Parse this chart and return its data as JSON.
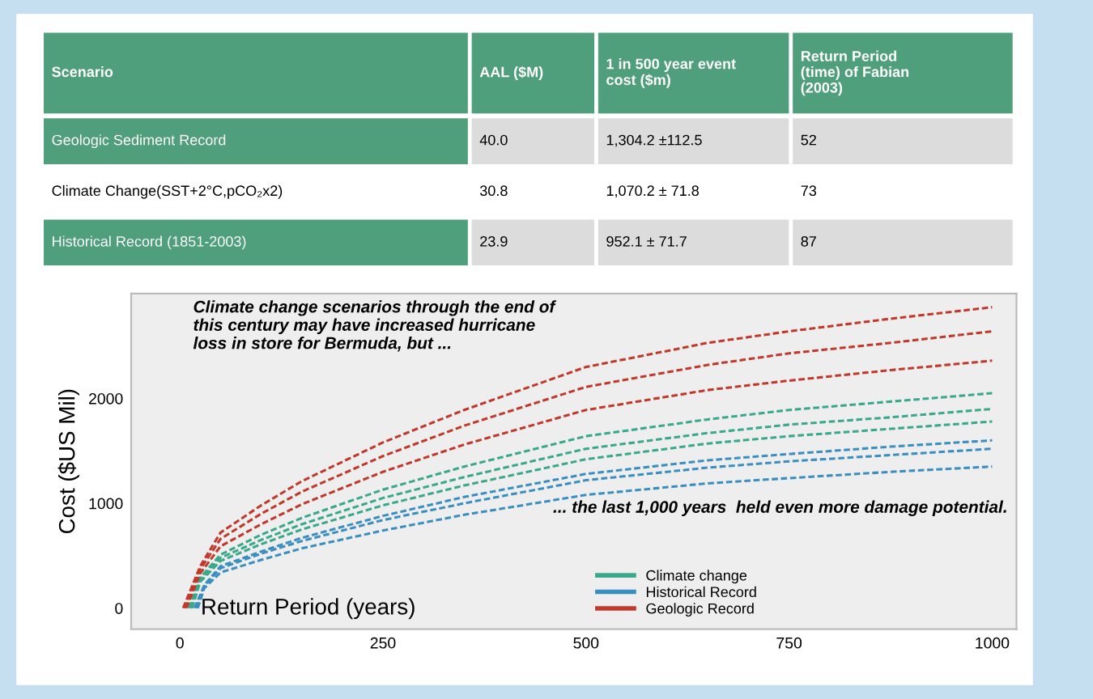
{
  "chart_data": [
    {
      "type": "other",
      "annotations": [
        "Scenario",
        "AAL ($M)",
        "1 in 500 year event\ncost ($m)",
        "Return Period\n(time) of Fabian\n(2003)",
        "Geologic Sediment Record",
        "40.0",
        "1,304.2 ±112.5",
        "52",
        "Climate Change(SST+2°C,pCO₂x2)",
        "30.8",
        "1,070.2 ± 71.8",
        "73",
        "Historical Record (1851-2003)",
        "23.9",
        "952.1 ± 71.7",
        "87"
      ]
    },
    {
      "type": "line",
      "xlabel": "Return Period (years)",
      "ylabel": "Cost ($US Mil)",
      "annotations": [
        "Climate change scenarios through the end of\nthis century may have increased hurricane\nloss in store for Bermuda, but ...",
        "... the last 1,000 years  held even more damage potential."
      ],
      "xlim": [
        -60,
        1030
      ],
      "ylim": [
        -200,
        3000
      ],
      "xticks": [
        0,
        250,
        500,
        750,
        1000
      ],
      "yticks": [
        0,
        1000,
        2000
      ],
      "legend": "bottom right",
      "line_style": "dashed",
      "marker": "none",
      "grid": false,
      "series": [
        {
          "name": "Climate change",
          "color": "#3aa88a",
          "x": [
            13,
            25,
            50,
            100,
            150,
            250,
            350,
            500,
            650,
            750,
            875,
            1000
          ],
          "values": [
            0,
            270,
            480,
            650,
            800,
            1050,
            1250,
            1520,
            1670,
            1750,
            1820,
            1900
          ]
        },
        {
          "color": "#3aa88a",
          "x": [
            11,
            25,
            50,
            100,
            150,
            250,
            350,
            500,
            650,
            750,
            875,
            1000
          ],
          "values": [
            0,
            290,
            510,
            700,
            860,
            1130,
            1350,
            1640,
            1800,
            1890,
            1970,
            2050
          ]
        },
        {
          "color": "#3aa88a",
          "x": [
            15,
            25,
            50,
            100,
            150,
            250,
            350,
            500,
            650,
            750,
            875,
            1000
          ],
          "values": [
            0,
            250,
            450,
            610,
            750,
            980,
            1170,
            1420,
            1570,
            1640,
            1710,
            1780
          ]
        },
        {
          "name": "Historical Record",
          "color": "#3a8fc0",
          "x": [
            20,
            30,
            50,
            100,
            150,
            250,
            350,
            500,
            650,
            750,
            875,
            1000
          ],
          "values": [
            0,
            210,
            380,
            520,
            640,
            840,
            1000,
            1220,
            1340,
            1400,
            1460,
            1520
          ]
        },
        {
          "color": "#3a8fc0",
          "x": [
            18,
            30,
            50,
            100,
            150,
            250,
            350,
            500,
            650,
            750,
            875,
            1000
          ],
          "values": [
            0,
            220,
            400,
            540,
            670,
            880,
            1060,
            1280,
            1410,
            1470,
            1540,
            1600
          ]
        },
        {
          "color": "#3a8fc0",
          "x": [
            22,
            30,
            50,
            100,
            150,
            250,
            350,
            500,
            650,
            750,
            875,
            1000
          ],
          "values": [
            0,
            190,
            340,
            460,
            570,
            740,
            890,
            1080,
            1190,
            1240,
            1300,
            1350
          ]
        },
        {
          "name": "Geologic Record",
          "color": "#c0392b",
          "x": [
            6,
            25,
            50,
            100,
            150,
            250,
            350,
            500,
            650,
            750,
            875,
            1000
          ],
          "values": [
            0,
            370,
            660,
            900,
            1110,
            1450,
            1740,
            2110,
            2320,
            2430,
            2530,
            2640
          ]
        },
        {
          "color": "#c0392b",
          "x": [
            4,
            25,
            50,
            100,
            150,
            250,
            350,
            500,
            650,
            750,
            875,
            1000
          ],
          "values": [
            0,
            400,
            720,
            980,
            1210,
            1580,
            1890,
            2300,
            2530,
            2640,
            2760,
            2870
          ]
        },
        {
          "color": "#c0392b",
          "x": [
            8,
            25,
            50,
            100,
            150,
            250,
            350,
            500,
            650,
            750,
            875,
            1000
          ],
          "values": [
            0,
            330,
            590,
            800,
            990,
            1300,
            1560,
            1890,
            2080,
            2170,
            2270,
            2360
          ]
        }
      ]
    }
  ]
}
